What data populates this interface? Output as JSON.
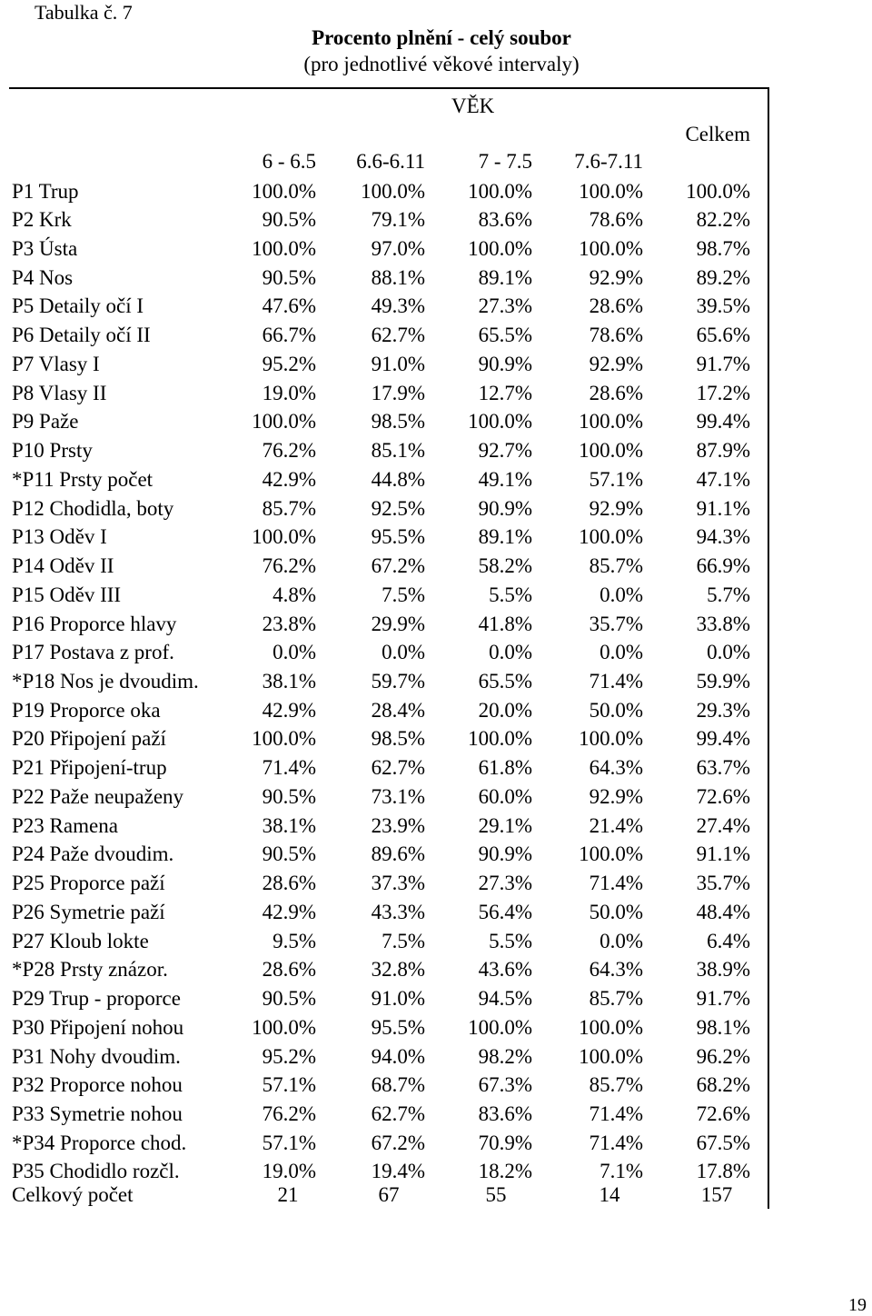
{
  "table_label": "Tabulka č. 7",
  "title": "Procento plnění - celý soubor",
  "subtitle": "(pro jednotlivé věkové intervaly)",
  "group_header": "VĚK",
  "total_header": "Celkem",
  "columns": [
    "6 - 6.5",
    "6.6-6.11",
    "7 - 7.5",
    "7.6-7.11"
  ],
  "rows": [
    {
      "label": "P1 Trup",
      "values": [
        "100.0%",
        "100.0%",
        "100.0%",
        "100.0%",
        "100.0%"
      ]
    },
    {
      "label": "P2 Krk",
      "values": [
        "90.5%",
        "79.1%",
        "83.6%",
        "78.6%",
        "82.2%"
      ]
    },
    {
      "label": "P3 Ústa",
      "values": [
        "100.0%",
        "97.0%",
        "100.0%",
        "100.0%",
        "98.7%"
      ]
    },
    {
      "label": "P4 Nos",
      "values": [
        "90.5%",
        "88.1%",
        "89.1%",
        "92.9%",
        "89.2%"
      ]
    },
    {
      "label": "P5 Detaily očí I",
      "values": [
        "47.6%",
        "49.3%",
        "27.3%",
        "28.6%",
        "39.5%"
      ]
    },
    {
      "label": "P6 Detaily očí II",
      "values": [
        "66.7%",
        "62.7%",
        "65.5%",
        "78.6%",
        "65.6%"
      ]
    },
    {
      "label": "P7 Vlasy I",
      "values": [
        "95.2%",
        "91.0%",
        "90.9%",
        "92.9%",
        "91.7%"
      ]
    },
    {
      "label": "P8 Vlasy II",
      "values": [
        "19.0%",
        "17.9%",
        "12.7%",
        "28.6%",
        "17.2%"
      ]
    },
    {
      "label": "P9 Paže",
      "values": [
        "100.0%",
        "98.5%",
        "100.0%",
        "100.0%",
        "99.4%"
      ]
    },
    {
      "label": "P10 Prsty",
      "values": [
        "76.2%",
        "85.1%",
        "92.7%",
        "100.0%",
        "87.9%"
      ]
    },
    {
      "label": "*P11 Prsty počet",
      "values": [
        "42.9%",
        "44.8%",
        "49.1%",
        "57.1%",
        "47.1%"
      ]
    },
    {
      "label": "P12 Chodidla, boty",
      "values": [
        "85.7%",
        "92.5%",
        "90.9%",
        "92.9%",
        "91.1%"
      ]
    },
    {
      "label": "P13 Oděv I",
      "values": [
        "100.0%",
        "95.5%",
        "89.1%",
        "100.0%",
        "94.3%"
      ]
    },
    {
      "label": "P14 Oděv II",
      "values": [
        "76.2%",
        "67.2%",
        "58.2%",
        "85.7%",
        "66.9%"
      ]
    },
    {
      "label": "P15 Oděv III",
      "values": [
        "4.8%",
        "7.5%",
        "5.5%",
        "0.0%",
        "5.7%"
      ]
    },
    {
      "label": "P16 Proporce hlavy",
      "values": [
        "23.8%",
        "29.9%",
        "41.8%",
        "35.7%",
        "33.8%"
      ]
    },
    {
      "label": "P17 Postava z prof.",
      "values": [
        "0.0%",
        "0.0%",
        "0.0%",
        "0.0%",
        "0.0%"
      ]
    },
    {
      "label": "*P18 Nos je dvoudim.",
      "values": [
        "38.1%",
        "59.7%",
        "65.5%",
        "71.4%",
        "59.9%"
      ]
    },
    {
      "label": "P19 Proporce oka",
      "values": [
        "42.9%",
        "28.4%",
        "20.0%",
        "50.0%",
        "29.3%"
      ]
    },
    {
      "label": "P20 Připojení paží",
      "values": [
        "100.0%",
        "98.5%",
        "100.0%",
        "100.0%",
        "99.4%"
      ]
    },
    {
      "label": "P21 Připojení-trup",
      "values": [
        "71.4%",
        "62.7%",
        "61.8%",
        "64.3%",
        "63.7%"
      ]
    },
    {
      "label": "P22 Paže neupaženy",
      "values": [
        "90.5%",
        "73.1%",
        "60.0%",
        "92.9%",
        "72.6%"
      ]
    },
    {
      "label": "P23 Ramena",
      "values": [
        "38.1%",
        "23.9%",
        "29.1%",
        "21.4%",
        "27.4%"
      ]
    },
    {
      "label": "P24 Paže dvoudim.",
      "values": [
        "90.5%",
        "89.6%",
        "90.9%",
        "100.0%",
        "91.1%"
      ]
    },
    {
      "label": "P25 Proporce paží",
      "values": [
        "28.6%",
        "37.3%",
        "27.3%",
        "71.4%",
        "35.7%"
      ]
    },
    {
      "label": "P26 Symetrie paží",
      "values": [
        "42.9%",
        "43.3%",
        "56.4%",
        "50.0%",
        "48.4%"
      ]
    },
    {
      "label": "P27 Kloub lokte",
      "values": [
        "9.5%",
        "7.5%",
        "5.5%",
        "0.0%",
        "6.4%"
      ]
    },
    {
      "label": "*P28 Prsty znázor.",
      "values": [
        "28.6%",
        "32.8%",
        "43.6%",
        "64.3%",
        "38.9%"
      ]
    },
    {
      "label": "P29 Trup - proporce",
      "values": [
        "90.5%",
        "91.0%",
        "94.5%",
        "85.7%",
        "91.7%"
      ]
    },
    {
      "label": "P30 Připojení nohou",
      "values": [
        "100.0%",
        "95.5%",
        "100.0%",
        "100.0%",
        "98.1%"
      ]
    },
    {
      "label": "P31 Nohy dvoudim.",
      "values": [
        "95.2%",
        "94.0%",
        "98.2%",
        "100.0%",
        "96.2%"
      ]
    },
    {
      "label": "P32 Proporce nohou",
      "values": [
        "57.1%",
        "68.7%",
        "67.3%",
        "85.7%",
        "68.2%"
      ]
    },
    {
      "label": "P33 Symetrie nohou",
      "values": [
        "76.2%",
        "62.7%",
        "83.6%",
        "71.4%",
        "72.6%"
      ]
    },
    {
      "label": "*P34 Proporce chod.",
      "values": [
        "57.1%",
        "67.2%",
        "70.9%",
        "71.4%",
        "67.5%"
      ]
    },
    {
      "label": "P35 Chodidlo rozčl.",
      "values": [
        "19.0%",
        "19.4%",
        "18.2%",
        "7.1%",
        "17.8%"
      ]
    }
  ],
  "total": {
    "label": "Celkový počet",
    "values": [
      "21",
      "67",
      "55",
      "14",
      "157"
    ]
  },
  "page_number": "19"
}
